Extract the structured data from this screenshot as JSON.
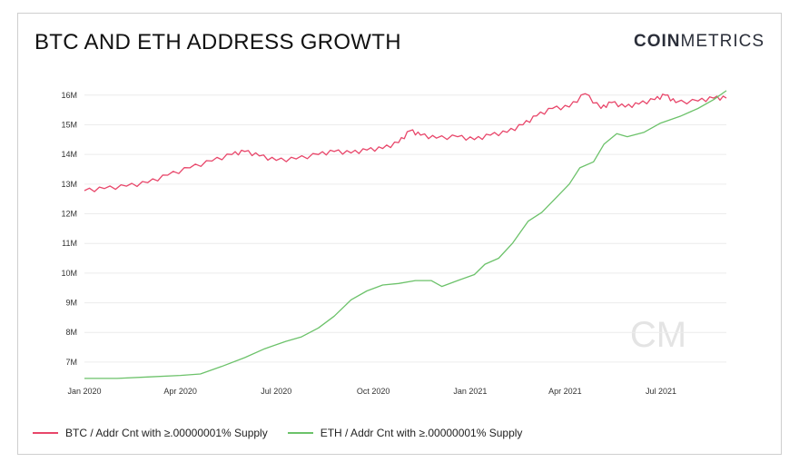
{
  "header": {
    "title": "BTC AND ETH ADDRESS GROWTH",
    "brand_bold": "COIN",
    "brand_light": "METRICS",
    "watermark": "CM"
  },
  "colors": {
    "btc": "#e8466a",
    "eth": "#6cc26a",
    "grid": "#ececec"
  },
  "chart_data": {
    "type": "line",
    "title": "BTC AND ETH ADDRESS GROWTH",
    "xlabel": "",
    "ylabel": "",
    "x_ticks": [
      "Jan 2020",
      "Apr 2020",
      "Jul 2020",
      "Oct 2020",
      "Jan 2021",
      "Apr 2021",
      "Jul 2021"
    ],
    "y_ticks": [
      "7M",
      "8M",
      "9M",
      "10M",
      "11M",
      "12M",
      "13M",
      "14M",
      "15M",
      "16M"
    ],
    "ylim": [
      6.6,
      16.3
    ],
    "x_range": [
      "2020-01-01",
      "2021-09-01"
    ],
    "grid": true,
    "legend_position": "bottom",
    "series": [
      {
        "name": "BTC / Addr Cnt with ≥.00000001% Supply",
        "color": "#e8466a",
        "points": [
          [
            "2020-01-01",
            12.78
          ],
          [
            "2020-01-20",
            12.85
          ],
          [
            "2020-02-10",
            12.93
          ],
          [
            "2020-03-01",
            13.05
          ],
          [
            "2020-03-20",
            13.3
          ],
          [
            "2020-04-10",
            13.55
          ],
          [
            "2020-05-01",
            13.78
          ],
          [
            "2020-05-20",
            14.0
          ],
          [
            "2020-06-01",
            14.1
          ],
          [
            "2020-06-15",
            13.95
          ],
          [
            "2020-07-01",
            13.8
          ],
          [
            "2020-07-20",
            13.85
          ],
          [
            "2020-08-10",
            14.0
          ],
          [
            "2020-08-25",
            14.1
          ],
          [
            "2020-09-10",
            14.05
          ],
          [
            "2020-09-25",
            14.15
          ],
          [
            "2020-10-10",
            14.2
          ],
          [
            "2020-10-25",
            14.4
          ],
          [
            "2020-11-05",
            14.8
          ],
          [
            "2020-11-15",
            14.65
          ],
          [
            "2020-11-30",
            14.55
          ],
          [
            "2020-12-20",
            14.6
          ],
          [
            "2021-01-05",
            14.5
          ],
          [
            "2021-01-20",
            14.65
          ],
          [
            "2021-02-05",
            14.75
          ],
          [
            "2021-02-20",
            15.0
          ],
          [
            "2021-03-05",
            15.3
          ],
          [
            "2021-03-20",
            15.55
          ],
          [
            "2021-04-05",
            15.6
          ],
          [
            "2021-04-20",
            16.05
          ],
          [
            "2021-05-05",
            15.55
          ],
          [
            "2021-05-15",
            15.75
          ],
          [
            "2021-05-28",
            15.6
          ],
          [
            "2021-06-10",
            15.7
          ],
          [
            "2021-06-25",
            15.85
          ],
          [
            "2021-07-05",
            16.0
          ],
          [
            "2021-07-15",
            15.75
          ],
          [
            "2021-08-05",
            15.8
          ],
          [
            "2021-08-20",
            15.9
          ],
          [
            "2021-09-01",
            15.9
          ]
        ]
      },
      {
        "name": "ETH / Addr Cnt with ≥.00000001% Supply",
        "color": "#6cc26a",
        "points": [
          [
            "2020-01-01",
            6.45
          ],
          [
            "2020-02-01",
            6.45
          ],
          [
            "2020-03-01",
            6.5
          ],
          [
            "2020-04-01",
            6.55
          ],
          [
            "2020-04-20",
            6.6
          ],
          [
            "2020-05-10",
            6.85
          ],
          [
            "2020-06-01",
            7.15
          ],
          [
            "2020-06-20",
            7.45
          ],
          [
            "2020-07-10",
            7.7
          ],
          [
            "2020-07-25",
            7.85
          ],
          [
            "2020-08-10",
            8.15
          ],
          [
            "2020-08-25",
            8.55
          ],
          [
            "2020-09-10",
            9.1
          ],
          [
            "2020-09-25",
            9.4
          ],
          [
            "2020-10-10",
            9.6
          ],
          [
            "2020-10-25",
            9.65
          ],
          [
            "2020-11-10",
            9.75
          ],
          [
            "2020-11-25",
            9.75
          ],
          [
            "2020-12-05",
            9.55
          ],
          [
            "2020-12-20",
            9.75
          ],
          [
            "2021-01-05",
            9.95
          ],
          [
            "2021-01-15",
            10.3
          ],
          [
            "2021-01-28",
            10.5
          ],
          [
            "2021-02-10",
            11.0
          ],
          [
            "2021-02-25",
            11.75
          ],
          [
            "2021-03-10",
            12.05
          ],
          [
            "2021-03-25",
            12.6
          ],
          [
            "2021-04-05",
            13.0
          ],
          [
            "2021-04-15",
            13.55
          ],
          [
            "2021-04-28",
            13.75
          ],
          [
            "2021-05-08",
            14.35
          ],
          [
            "2021-05-20",
            14.7
          ],
          [
            "2021-05-30",
            14.6
          ],
          [
            "2021-06-15",
            14.75
          ],
          [
            "2021-06-30",
            15.05
          ],
          [
            "2021-07-20",
            15.3
          ],
          [
            "2021-08-05",
            15.55
          ],
          [
            "2021-08-20",
            15.85
          ],
          [
            "2021-09-01",
            16.15
          ]
        ]
      }
    ]
  }
}
